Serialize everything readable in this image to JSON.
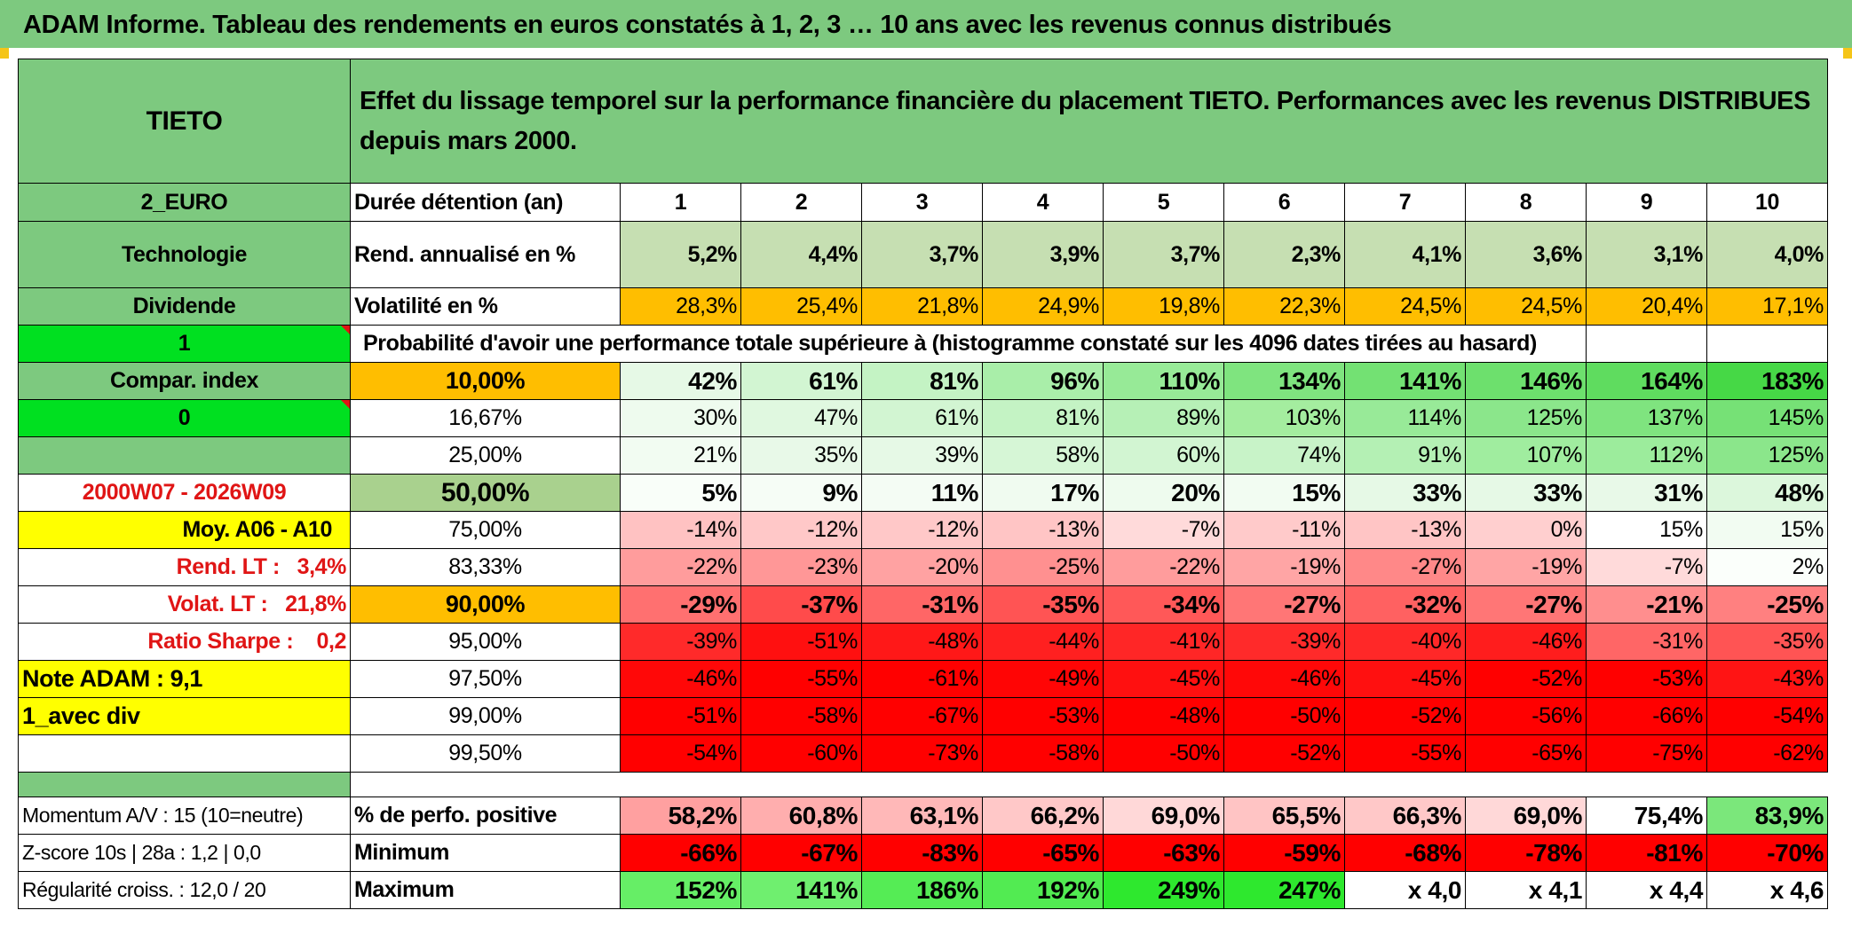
{
  "title": "ADAM Informe. Tableau des rendements en euros constatés à 1, 2, 3 … 10 ans avec les revenus connus distribués",
  "left": {
    "name": "TIETO",
    "currency": "2_EURO",
    "sector": "Technologie",
    "dividend_label": "Dividende",
    "flag1": "1",
    "compar_label": "Compar. index",
    "flag0": "0",
    "period": "2000W07 - 2026W09",
    "moy": "Moy. A06 - A10",
    "rend_lt": "Rend. LT :   3,4%",
    "volat_lt": "Volat. LT :   21,8%",
    "sharpe": "Ratio Sharpe :    0,2",
    "note": "Note ADAM : 9,1",
    "avec_div": "1_avec div",
    "momentum": "Momentum A/V : 15 (10=neutre)",
    "zscore": "Z-score 10s | 28a : 1,2 | 0,0",
    "regularite": "Régularité croiss. : 12,0 / 20"
  },
  "header": {
    "description": "Effet du lissage temporel sur la performance financière du placement TIETO. Performances avec les revenus DISTRIBUES depuis mars 2000.",
    "duration_label": "Durée détention (an)",
    "years": [
      "1",
      "2",
      "3",
      "4",
      "5",
      "6",
      "7",
      "8",
      "9",
      "10"
    ]
  },
  "rend": {
    "label": "Rend. annualisé en %",
    "values": [
      "5,2%",
      "4,4%",
      "3,7%",
      "3,9%",
      "3,7%",
      "2,3%",
      "4,1%",
      "3,6%",
      "3,1%",
      "4,0%"
    ]
  },
  "vol": {
    "label": "Volatilité en %",
    "values": [
      "28,3%",
      "25,4%",
      "21,8%",
      "24,9%",
      "19,8%",
      "22,3%",
      "24,5%",
      "24,5%",
      "20,4%",
      "17,1%"
    ]
  },
  "prob_label": "Probabilité d'avoir une performance totale supérieure à (histogramme constaté sur les 4096 dates tirées au hasard)",
  "prob_rows": [
    {
      "p": "10,00%",
      "bold": true,
      "values": [
        "42%",
        "61%",
        "81%",
        "96%",
        "110%",
        "134%",
        "141%",
        "146%",
        "164%",
        "183%"
      ],
      "colors": [
        "#e6f9e6",
        "#d2f5d2",
        "#c4f3c4",
        "#a9eea9",
        "#97ea97",
        "#7fe47f",
        "#73e173",
        "#6de06d",
        "#5fdc5f",
        "#46d846"
      ]
    },
    {
      "p": "16,67%",
      "bold": false,
      "values": [
        "30%",
        "47%",
        "61%",
        "81%",
        "89%",
        "103%",
        "114%",
        "125%",
        "137%",
        "145%"
      ],
      "colors": [
        "#eefbee",
        "#e0f8e0",
        "#d2f5d2",
        "#c4f3c4",
        "#b6f0b6",
        "#a4ed9f",
        "#98ea98",
        "#8be68b",
        "#7fe47f",
        "#76e176"
      ]
    },
    {
      "p": "25,00%",
      "bold": false,
      "values": [
        "21%",
        "35%",
        "39%",
        "58%",
        "60%",
        "74%",
        "91%",
        "107%",
        "112%",
        "125%"
      ],
      "colors": [
        "#f2fcf2",
        "#e8f9e8",
        "#e6f9e6",
        "#d6f6d6",
        "#d2f5d2",
        "#c8f3c8",
        "#b4f0b4",
        "#a0ed9f",
        "#9cec9c",
        "#8be68b"
      ]
    },
    {
      "p": "50,00%",
      "bold": true,
      "values": [
        "5%",
        "9%",
        "11%",
        "17%",
        "20%",
        "15%",
        "33%",
        "33%",
        "31%",
        "48%"
      ],
      "colors": [
        "#f9fef9",
        "#f6fdf6",
        "#f4fcf4",
        "#f0fbf0",
        "#eefbee",
        "#f2fcf2",
        "#e6f9e6",
        "#e6f9e6",
        "#e8f9e8",
        "#dcf7dc"
      ]
    },
    {
      "p": "75,00%",
      "bold": false,
      "values": [
        "-14%",
        "-12%",
        "-12%",
        "-13%",
        "-7%",
        "-11%",
        "-13%",
        "0%",
        "15%",
        "15%"
      ],
      "colors": [
        "#ffc2c2",
        "#ffc8c8",
        "#ffc8c8",
        "#ffc5c5",
        "#ffdada",
        "#ffcaca",
        "#ffc5c5",
        "#ffcfcf",
        "#ffffff",
        "#f2fcf2"
      ]
    },
    {
      "p": "83,33%",
      "bold": false,
      "values": [
        "-22%",
        "-23%",
        "-20%",
        "-25%",
        "-22%",
        "-19%",
        "-27%",
        "-19%",
        "-7%",
        "2%"
      ],
      "colors": [
        "#ff9c9c",
        "#ff9797",
        "#ffa2a2",
        "#ff9090",
        "#ff9c9c",
        "#ffa5a5",
        "#ff8888",
        "#ffa5a5",
        "#ffdada",
        "#fbfffb"
      ]
    },
    {
      "p": "90,00%",
      "bold": true,
      "values": [
        "-29%",
        "-37%",
        "-31%",
        "-35%",
        "-34%",
        "-27%",
        "-32%",
        "-27%",
        "-21%",
        "-25%"
      ],
      "colors": [
        "#ff7070",
        "#ff4b4b",
        "#ff6666",
        "#ff5454",
        "#ff5858",
        "#ff7676",
        "#ff6161",
        "#ff7676",
        "#ff8e8e",
        "#ff8080"
      ]
    },
    {
      "p": "95,00%",
      "bold": false,
      "values": [
        "-39%",
        "-51%",
        "-48%",
        "-44%",
        "-41%",
        "-39%",
        "-40%",
        "-46%",
        "-31%",
        "-35%"
      ],
      "colors": [
        "#ff2a2a",
        "#ff1010",
        "#ff1818",
        "#ff2020",
        "#ff2626",
        "#ff2a2a",
        "#ff2828",
        "#ff1d1d",
        "#ff6666",
        "#ff5454"
      ]
    },
    {
      "p": "97,50%",
      "bold": false,
      "values": [
        "-46%",
        "-55%",
        "-61%",
        "-49%",
        "-45%",
        "-46%",
        "-45%",
        "-52%",
        "-53%",
        "-43%"
      ],
      "colors": [
        "#ff0808",
        "#ff0000",
        "#ff0000",
        "#ff0505",
        "#ff1010",
        "#ff0808",
        "#ff1010",
        "#ff0000",
        "#ff0000",
        "#ff1414"
      ]
    },
    {
      "p": "99,00%",
      "bold": false,
      "values": [
        "-51%",
        "-58%",
        "-67%",
        "-53%",
        "-48%",
        "-50%",
        "-52%",
        "-56%",
        "-66%",
        "-54%"
      ],
      "colors": [
        "#ff0000",
        "#ff0000",
        "#ff0000",
        "#ff0000",
        "#ff0000",
        "#ff0000",
        "#ff0000",
        "#ff0000",
        "#ff0000",
        "#ff0000"
      ]
    },
    {
      "p": "99,50%",
      "bold": false,
      "values": [
        "-54%",
        "-60%",
        "-73%",
        "-58%",
        "-50%",
        "-52%",
        "-55%",
        "-65%",
        "-75%",
        "-62%"
      ],
      "colors": [
        "#ff0000",
        "#ff0000",
        "#ff0000",
        "#ff0000",
        "#ff0000",
        "#ff0000",
        "#ff0000",
        "#ff0000",
        "#ff0000",
        "#ff0000"
      ]
    }
  ],
  "bottom": {
    "pos_label": "% de perfo. positive",
    "pos_values": [
      "58,2%",
      "60,8%",
      "63,1%",
      "66,2%",
      "69,0%",
      "65,5%",
      "66,3%",
      "69,0%",
      "75,4%",
      "83,9%"
    ],
    "pos_colors": [
      "#ffa0a0",
      "#ffaeae",
      "#ffb8b8",
      "#ffc8c8",
      "#ffd8d8",
      "#ffc4c4",
      "#ffc8c8",
      "#ffd8d8",
      "#ffffff",
      "#7be77b"
    ],
    "min_label": "Minimum",
    "min_values": [
      "-66%",
      "-67%",
      "-83%",
      "-65%",
      "-63%",
      "-59%",
      "-68%",
      "-78%",
      "-81%",
      "-70%"
    ],
    "max_label": "Maximum",
    "max_values": [
      "152%",
      "141%",
      "186%",
      "192%",
      "249%",
      "247%",
      "x 4,0",
      "x 4,1",
      "x 4,4",
      "x 4,6"
    ],
    "max_colors": [
      "#66ee66",
      "#6fef6f",
      "#55ec55",
      "#52eb52",
      "#2ee82e",
      "#2ee82e",
      "#ffffff",
      "#ffffff",
      "#ffffff",
      "#ffffff"
    ]
  },
  "colors": {
    "header_green": "#7dc97f",
    "bright_green": "#00e020",
    "yellow": "#ffff00",
    "orange": "#ffbe00",
    "red_text": "#e01515"
  }
}
